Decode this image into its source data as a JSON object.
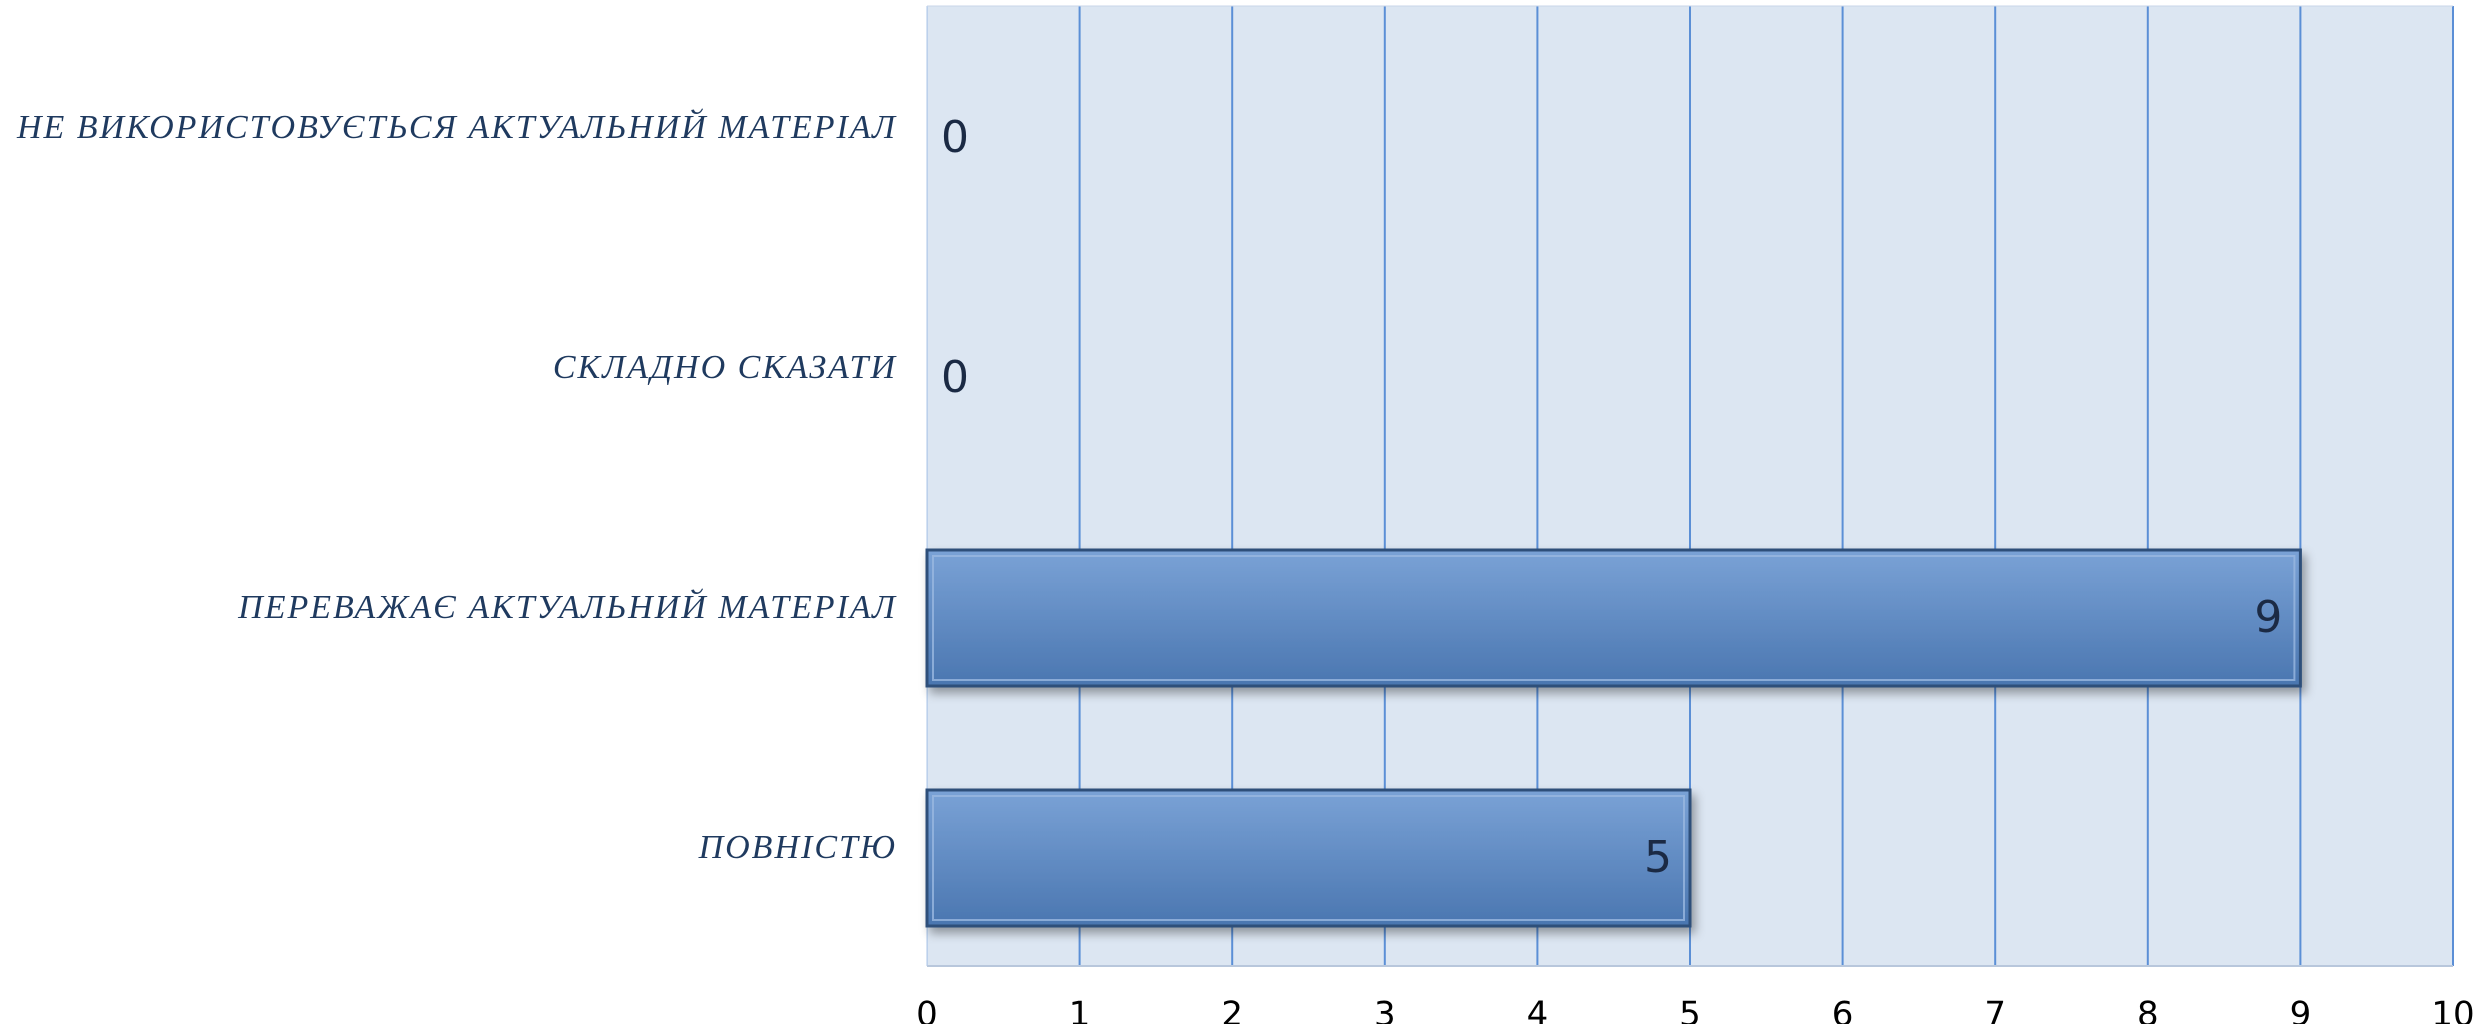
{
  "chart_data": {
    "type": "bar",
    "orientation": "horizontal",
    "categories": [
      "НЕ ВИКОРИСТОВУЄТЬСЯ АКТУАЛЬНИЙ МАТЕРІАЛ",
      "СКЛАДНО СКАЗАТИ",
      "ПЕРЕВАЖАЄ АКТУАЛЬНИЙ МАТЕРІАЛ",
      "ПОВНІСТЮ"
    ],
    "values": [
      0,
      0,
      9,
      5
    ],
    "data_labels": [
      "0",
      "0",
      "9",
      "5"
    ],
    "x_ticks": [
      "0",
      "1",
      "2",
      "3",
      "4",
      "5",
      "6",
      "7",
      "8",
      "9",
      "10"
    ],
    "xlim": [
      0,
      10
    ],
    "grid": true,
    "legend": "none",
    "colors": {
      "plot_background": "#dce6f2",
      "gridline": "#5b8fd6",
      "bar_fill_top": "#7aa2d6",
      "bar_fill_bottom": "#4a76b0",
      "bar_border": "#2f4f7a",
      "category_text": "#1f3a5f"
    }
  }
}
